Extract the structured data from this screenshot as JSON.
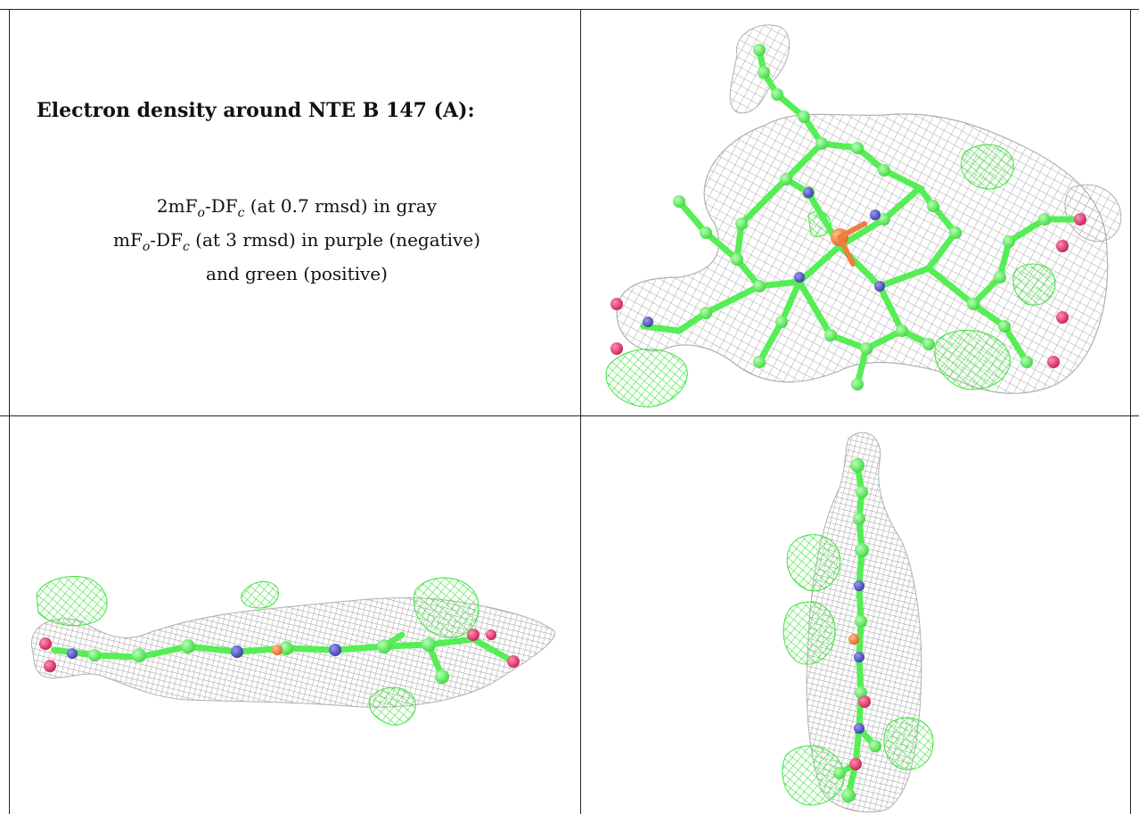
{
  "caption": {
    "title": "Electron density around NTE B 147 (A):",
    "line1": {
      "a": "2mF",
      "b": "o",
      "c": "-DF",
      "d": "c",
      "e": " (at 0.7 rmsd) in gray"
    },
    "line2": {
      "a": "mF",
      "b": "o",
      "c": "-DF",
      "d": "c",
      "e": " (at 3 rmsd) in purple (negative)"
    },
    "line3": "and green (positive)"
  },
  "colors": {
    "mesh_2fofc": "#a8a8a8",
    "mesh_positive": "#3ee23e",
    "carbon": "#55ee55",
    "nitrogen": "#5555cc",
    "oxygen": "#e8336e",
    "iron": "#f07e3c",
    "rule": "#222222"
  },
  "panels": [
    {
      "view": "top-right",
      "content": "face-on model with density mesh"
    },
    {
      "view": "bottom-left",
      "content": "edge-on horizontal model with density mesh"
    },
    {
      "view": "bottom-right",
      "content": "edge-on vertical model with density mesh"
    }
  ]
}
